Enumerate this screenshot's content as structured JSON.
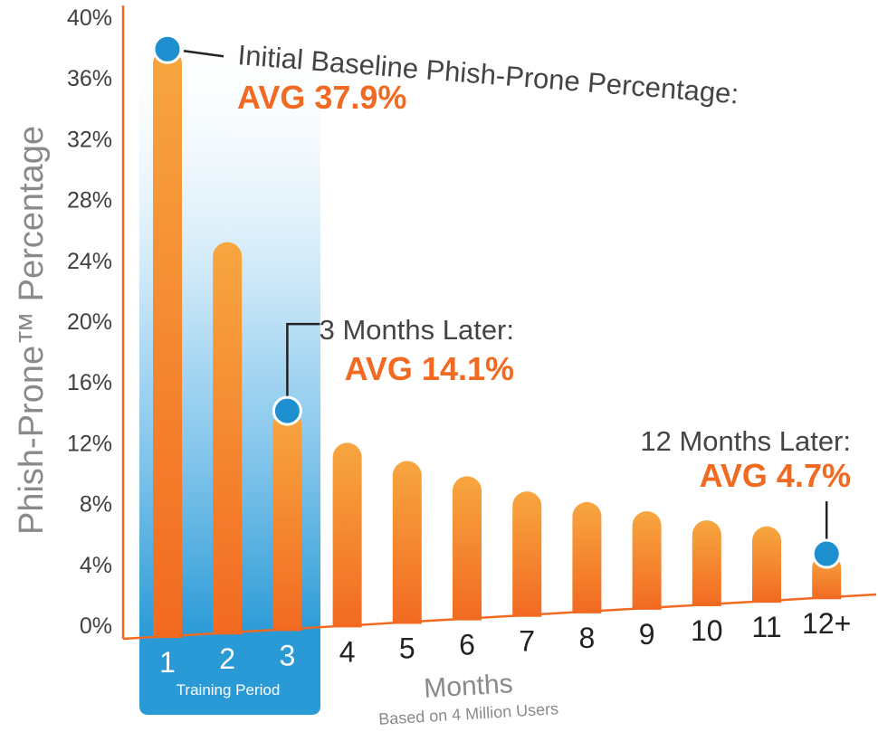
{
  "chart_data": {
    "type": "bar",
    "title": "",
    "xlabel": "Months",
    "xlabel_sub": "Based on 4 Million Users",
    "ylabel": "Phish-Prone™ Percentage",
    "categories": [
      "1",
      "2",
      "3",
      "4",
      "5",
      "6",
      "7",
      "8",
      "9",
      "10",
      "11",
      "12+"
    ],
    "values": [
      37.9,
      25.2,
      14.1,
      12.0,
      10.8,
      9.8,
      8.8,
      8.1,
      7.5,
      6.9,
      6.5,
      4.7
    ],
    "ylim": [
      0,
      40
    ],
    "yticks": [
      "0%",
      "4%",
      "8%",
      "12%",
      "16%",
      "20%",
      "24%",
      "28%",
      "32%",
      "36%",
      "40%"
    ],
    "highlight": {
      "label": "Training Period",
      "categories": [
        "1",
        "2",
        "3"
      ],
      "color": "#2a9ad6"
    },
    "colors": {
      "bar_top": "#f7a640",
      "bar_bottom": "#f26a21",
      "marker": "#1e8fcf",
      "axis": "#f26a21"
    },
    "annotations": [
      {
        "label": "Initial Baseline Phish-Prone Percentage:",
        "value": "AVG 37.9%",
        "category": "1"
      },
      {
        "label": "3 Months Later:",
        "value": "AVG 14.1%",
        "category": "3"
      },
      {
        "label": "12 Months Later:",
        "value": "AVG 4.7%",
        "category": "12+"
      }
    ]
  }
}
